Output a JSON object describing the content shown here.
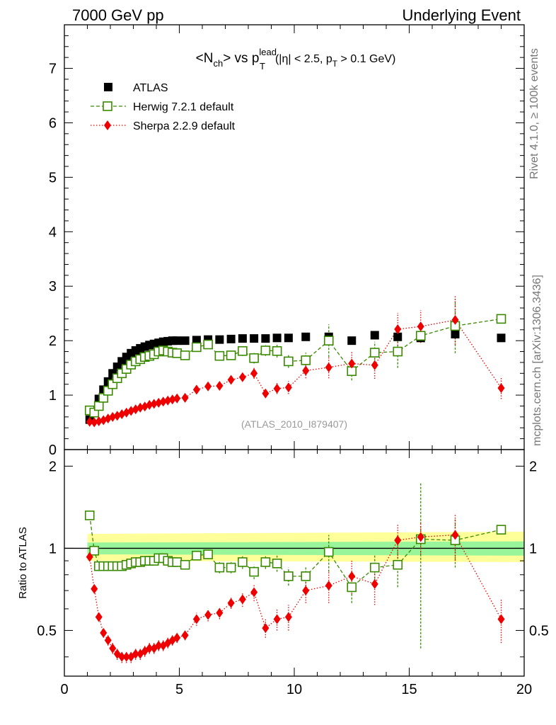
{
  "header": {
    "left": "7000 GeV pp",
    "right": "Underlying Event"
  },
  "title": {
    "pre": "<N",
    "sub1": "ch",
    "mid": "> vs p",
    "sup": "lead",
    "sub2": "T",
    "cut_a": "(|η| < 2.5, p",
    "cut_sub": "T",
    "cut_b": " > 0.1 GeV)"
  },
  "side_labels": {
    "rivet": "Rivet 4.1.0, ≥ 100k events",
    "mcplots": "mcplots.cern.ch [arXiv:1306.3436]"
  },
  "watermark": "(ATLAS_2010_I879407)",
  "legend": {
    "atlas": "ATLAS",
    "herwig": "Herwig 7.2.1 default",
    "sherpa": "Sherpa 2.2.9 default"
  },
  "ratio_ylabel": "Ratio to ATLAS",
  "colors": {
    "atlas": "#000000",
    "herwig": "#3a8a00",
    "sherpa": "#ee0000",
    "band_inner": "#99f599",
    "band_outer": "#ffff99"
  },
  "chart_data": [
    {
      "type": "scatter",
      "panel": "main",
      "title": "<Nch> vs pT lead (|η| < 2.5, pT > 0.1 GeV)",
      "xlim": [
        0,
        20
      ],
      "ylim": [
        0,
        7.8
      ],
      "yticks": [
        0,
        1,
        2,
        3,
        4,
        5,
        6,
        7
      ],
      "ytick_labels": [
        "0",
        "1",
        "2",
        "3",
        "4",
        "5",
        "6",
        "7"
      ],
      "x": [
        1.1,
        1.3,
        1.5,
        1.7,
        1.9,
        2.1,
        2.3,
        2.5,
        2.7,
        2.9,
        3.1,
        3.3,
        3.5,
        3.7,
        3.9,
        4.1,
        4.3,
        4.5,
        4.7,
        4.9,
        5.25,
        5.75,
        6.25,
        6.75,
        7.25,
        7.75,
        8.25,
        8.75,
        9.25,
        9.75,
        10.5,
        11.5,
        12.5,
        13.5,
        14.5,
        15.5,
        17.0,
        19.0
      ],
      "series": [
        {
          "name": "ATLAS",
          "marker": "filled-square",
          "values": [
            0.55,
            0.7,
            0.93,
            1.1,
            1.25,
            1.4,
            1.52,
            1.62,
            1.7,
            1.77,
            1.82,
            1.86,
            1.89,
            1.92,
            1.94,
            1.96,
            1.98,
            1.99,
            2.0,
            2.0,
            2.0,
            2.01,
            2.02,
            2.02,
            2.03,
            2.04,
            2.04,
            2.04,
            2.05,
            2.05,
            2.07,
            2.07,
            2.0,
            2.1,
            2.07,
            2.05,
            2.12,
            2.05
          ]
        },
        {
          "name": "Herwig 7.2.1 default",
          "marker": "open-square",
          "line": "dashed",
          "values": [
            0.72,
            0.68,
            0.8,
            0.95,
            1.08,
            1.2,
            1.31,
            1.4,
            1.48,
            1.56,
            1.62,
            1.66,
            1.7,
            1.72,
            1.75,
            1.8,
            1.82,
            1.8,
            1.78,
            1.77,
            1.73,
            1.88,
            1.93,
            1.72,
            1.73,
            1.81,
            1.68,
            1.82,
            1.81,
            1.62,
            1.64,
            2.0,
            1.44,
            1.78,
            1.8,
            2.09,
            2.27,
            2.4
          ],
          "errors": [
            0.02,
            0.02,
            0.02,
            0.02,
            0.02,
            0.02,
            0.02,
            0.02,
            0.02,
            0.02,
            0.02,
            0.02,
            0.02,
            0.03,
            0.03,
            0.03,
            0.04,
            0.04,
            0.04,
            0.05,
            0.05,
            0.06,
            0.07,
            0.07,
            0.08,
            0.09,
            0.1,
            0.1,
            0.12,
            0.12,
            0.14,
            0.3,
            0.17,
            0.2,
            0.3,
            0.0,
            0.5,
            0.0
          ]
        },
        {
          "name": "Sherpa 2.2.9 default",
          "marker": "filled-diamond",
          "line": "dotted",
          "values": [
            0.51,
            0.5,
            0.52,
            0.54,
            0.57,
            0.6,
            0.62,
            0.65,
            0.68,
            0.71,
            0.74,
            0.77,
            0.79,
            0.82,
            0.84,
            0.86,
            0.88,
            0.9,
            0.92,
            0.94,
            0.95,
            1.1,
            1.16,
            1.17,
            1.28,
            1.33,
            1.4,
            1.03,
            1.12,
            1.14,
            1.45,
            1.51,
            1.58,
            1.55,
            2.21,
            2.26,
            2.38,
            1.13
          ],
          "errors": [
            0.02,
            0.02,
            0.02,
            0.02,
            0.02,
            0.02,
            0.02,
            0.02,
            0.02,
            0.02,
            0.02,
            0.02,
            0.02,
            0.02,
            0.02,
            0.03,
            0.03,
            0.03,
            0.03,
            0.03,
            0.04,
            0.05,
            0.06,
            0.06,
            0.07,
            0.08,
            0.1,
            0.08,
            0.1,
            0.12,
            0.14,
            0.2,
            0.22,
            0.25,
            0.3,
            0.3,
            0.45,
            0.2
          ]
        }
      ]
    },
    {
      "type": "scatter",
      "panel": "ratio",
      "ylabel": "Ratio to ATLAS",
      "xlabel": "",
      "xlim": [
        0,
        20
      ],
      "ylim": [
        0.34,
        2.3
      ],
      "xticks": [
        0,
        5,
        10,
        15,
        20
      ],
      "xtick_labels": [
        "0",
        "5",
        "10",
        "15",
        "20"
      ],
      "yticks": [
        0.5,
        1,
        2
      ],
      "ytick_labels": [
        "0.5",
        "1",
        "2"
      ],
      "x": [
        1.1,
        1.3,
        1.5,
        1.7,
        1.9,
        2.1,
        2.3,
        2.5,
        2.7,
        2.9,
        3.1,
        3.3,
        3.5,
        3.7,
        3.9,
        4.1,
        4.3,
        4.5,
        4.7,
        4.9,
        5.25,
        5.75,
        6.25,
        6.75,
        7.25,
        7.75,
        8.25,
        8.75,
        9.25,
        9.75,
        10.5,
        11.5,
        12.5,
        13.5,
        14.5,
        15.5,
        17.0,
        19.0
      ],
      "band": {
        "x_edges": [
          1.0,
          20.0
        ],
        "inner": [
          [
            1.0,
            0.95,
            1.05
          ],
          [
            20.0,
            0.94,
            1.06
          ]
        ],
        "outer": [
          [
            1.0,
            0.9,
            1.13
          ],
          [
            20.0,
            0.89,
            1.15
          ]
        ]
      },
      "series": [
        {
          "name": "Herwig 7.2.1 default",
          "values": [
            1.32,
            0.98,
            0.86,
            0.86,
            0.86,
            0.86,
            0.86,
            0.86,
            0.87,
            0.88,
            0.89,
            0.89,
            0.9,
            0.9,
            0.9,
            0.92,
            0.92,
            0.9,
            0.89,
            0.89,
            0.87,
            0.94,
            0.95,
            0.85,
            0.85,
            0.89,
            0.82,
            0.89,
            0.88,
            0.79,
            0.79,
            0.97,
            0.72,
            0.85,
            0.87,
            1.08,
            1.07,
            1.17
          ],
          "errors": [
            0.02,
            0.02,
            0.02,
            0.02,
            0.02,
            0.02,
            0.02,
            0.02,
            0.02,
            0.02,
            0.02,
            0.02,
            0.02,
            0.02,
            0.02,
            0.02,
            0.02,
            0.02,
            0.03,
            0.03,
            0.03,
            0.03,
            0.03,
            0.04,
            0.04,
            0.05,
            0.05,
            0.05,
            0.06,
            0.06,
            0.07,
            0.15,
            0.09,
            0.1,
            0.15,
            0.65,
            0.22,
            0.0
          ]
        },
        {
          "name": "Sherpa 2.2.9 default",
          "values": [
            0.93,
            0.71,
            0.56,
            0.49,
            0.46,
            0.43,
            0.41,
            0.4,
            0.4,
            0.4,
            0.41,
            0.41,
            0.42,
            0.43,
            0.43,
            0.44,
            0.44,
            0.45,
            0.46,
            0.47,
            0.48,
            0.55,
            0.57,
            0.58,
            0.63,
            0.65,
            0.69,
            0.51,
            0.55,
            0.56,
            0.7,
            0.73,
            0.79,
            0.74,
            1.07,
            1.1,
            1.12,
            0.55
          ],
          "errors": [
            0.02,
            0.02,
            0.02,
            0.02,
            0.02,
            0.02,
            0.02,
            0.02,
            0.02,
            0.02,
            0.02,
            0.02,
            0.02,
            0.02,
            0.02,
            0.02,
            0.02,
            0.02,
            0.02,
            0.02,
            0.02,
            0.03,
            0.03,
            0.03,
            0.03,
            0.04,
            0.05,
            0.04,
            0.05,
            0.06,
            0.07,
            0.1,
            0.11,
            0.12,
            0.15,
            0.15,
            0.22,
            0.1
          ]
        }
      ]
    }
  ]
}
